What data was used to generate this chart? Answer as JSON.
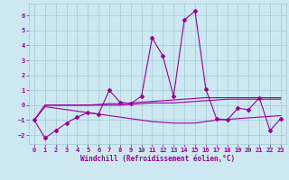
{
  "xlabel": "Windchill (Refroidissement éolien,°C)",
  "xlim": [
    -0.5,
    23.5
  ],
  "ylim": [
    -2.6,
    6.8
  ],
  "yticks": [
    -2,
    -1,
    0,
    1,
    2,
    3,
    4,
    5,
    6
  ],
  "xticks": [
    0,
    1,
    2,
    3,
    4,
    5,
    6,
    7,
    8,
    9,
    10,
    11,
    12,
    13,
    14,
    15,
    16,
    17,
    18,
    19,
    20,
    21,
    22,
    23
  ],
  "bg_color": "#cde8f0",
  "grid_color": "#a0c8d8",
  "line_color": "#990099",
  "line1_y": [
    -1.0,
    -2.2,
    -1.7,
    -1.2,
    -0.8,
    -0.5,
    -0.6,
    1.0,
    0.2,
    0.1,
    0.6,
    4.5,
    3.3,
    0.6,
    5.7,
    6.3,
    1.1,
    -0.9,
    -1.0,
    -0.2,
    -0.3,
    0.5,
    -1.7,
    -0.9
  ],
  "line2_y": [
    -1.0,
    -0.0,
    -0.0,
    -0.0,
    -0.0,
    -0.0,
    -0.0,
    0.0,
    0.0,
    0.05,
    0.1,
    0.15,
    0.15,
    0.15,
    0.2,
    0.25,
    0.3,
    0.35,
    0.4,
    0.4,
    0.4,
    0.4,
    0.4,
    0.4
  ],
  "line3_y": [
    -1.0,
    0.0,
    0.0,
    0.0,
    0.0,
    0.0,
    0.05,
    0.1,
    0.1,
    0.15,
    0.2,
    0.25,
    0.3,
    0.35,
    0.4,
    0.45,
    0.5,
    0.5,
    0.5,
    0.5,
    0.5,
    0.5,
    0.5,
    0.5
  ],
  "line4_y": [
    -1.0,
    -0.1,
    -0.2,
    -0.3,
    -0.4,
    -0.5,
    -0.6,
    -0.7,
    -0.8,
    -0.9,
    -1.0,
    -1.1,
    -1.15,
    -1.2,
    -1.2,
    -1.2,
    -1.1,
    -1.0,
    -0.95,
    -0.9,
    -0.85,
    -0.8,
    -0.75,
    -0.7
  ]
}
